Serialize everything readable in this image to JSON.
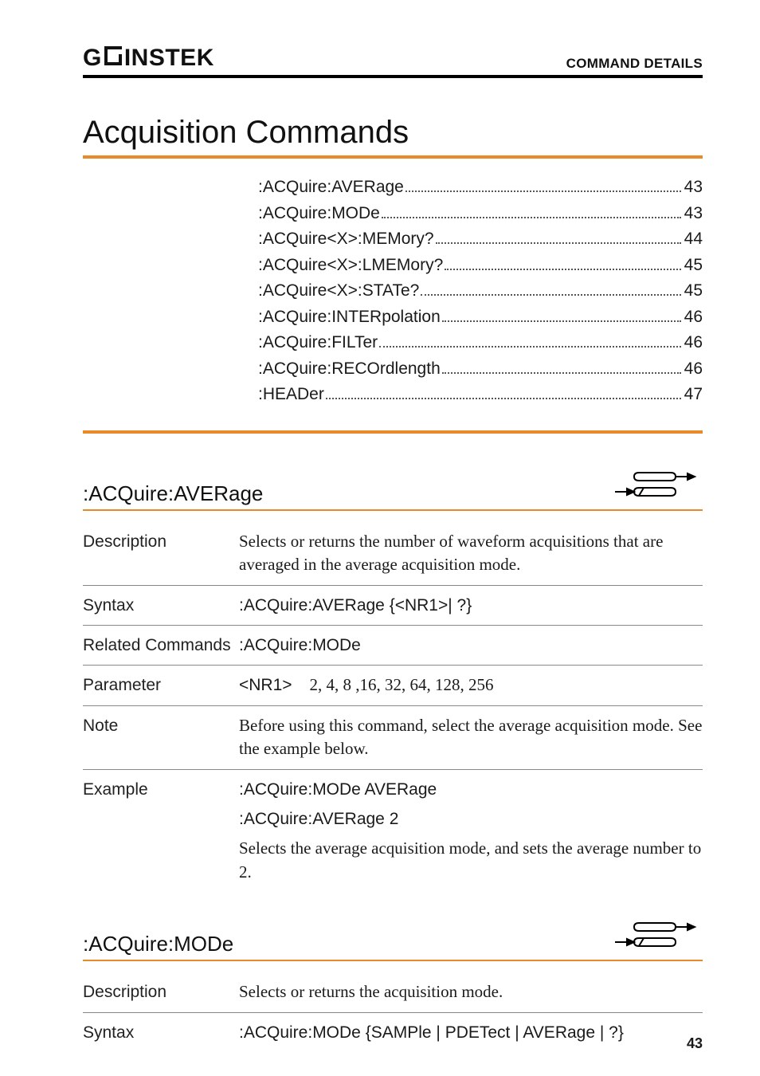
{
  "brand": {
    "pre": "G",
    "post": "INSTEK"
  },
  "section_label": "COMMAND DETAILS",
  "title": "Acquisition Commands",
  "colors": {
    "accent": "#e88a2a",
    "rule": "#000000",
    "text": "#1a1a1a"
  },
  "toc": [
    {
      "label": ":ACQuire:AVERage",
      "page": "43"
    },
    {
      "label": ":ACQuire:MODe",
      "page": "43"
    },
    {
      "label": ":ACQuire<X>:MEMory?",
      "page": "44"
    },
    {
      "label": ":ACQuire<X>:LMEMory?",
      "page": "45"
    },
    {
      "label": ":ACQuire<X>:STATe?",
      "page": "45"
    },
    {
      "label": ":ACQuire:INTERpolation",
      "page": "46"
    },
    {
      "label": ":ACQuire:FILTer",
      "page": "46"
    },
    {
      "label": ":ACQuire:RECOrdlength",
      "page": "46"
    },
    {
      "label": ":HEADer",
      "page": "47"
    }
  ],
  "sub1": {
    "heading": ":ACQuire:AVERage",
    "rows": {
      "description_label": "Description",
      "description_value": "Selects or returns the number of waveform acquisitions that are averaged in the average acquisition mode.",
      "syntax_label": "Syntax",
      "syntax_value": ":ACQuire:AVERage {<NR1>| ?}",
      "related_label": "Related Commands",
      "related_value": ":ACQuire:MODe",
      "param_label": "Parameter",
      "param_key": "<NR1>",
      "param_value": "2, 4, 8 ,16, 32, 64, 128, 256",
      "note_label": "Note",
      "note_value": "Before using this command, select the average acquisition mode. See the example below.",
      "example_label": "Example",
      "example_l1": ":ACQuire:MODe AVERage",
      "example_l2": ":ACQuire:AVERage 2",
      "example_l3": "Selects the average acquisition mode, and sets the average number to 2."
    }
  },
  "sub2": {
    "heading": ":ACQuire:MODe",
    "rows": {
      "description_label": "Description",
      "description_value": "Selects or returns the acquisition mode.",
      "syntax_label": "Syntax",
      "syntax_value": ":ACQuire:MODe {SAMPle | PDETect | AVERage | ?}"
    }
  },
  "page_number": "43"
}
